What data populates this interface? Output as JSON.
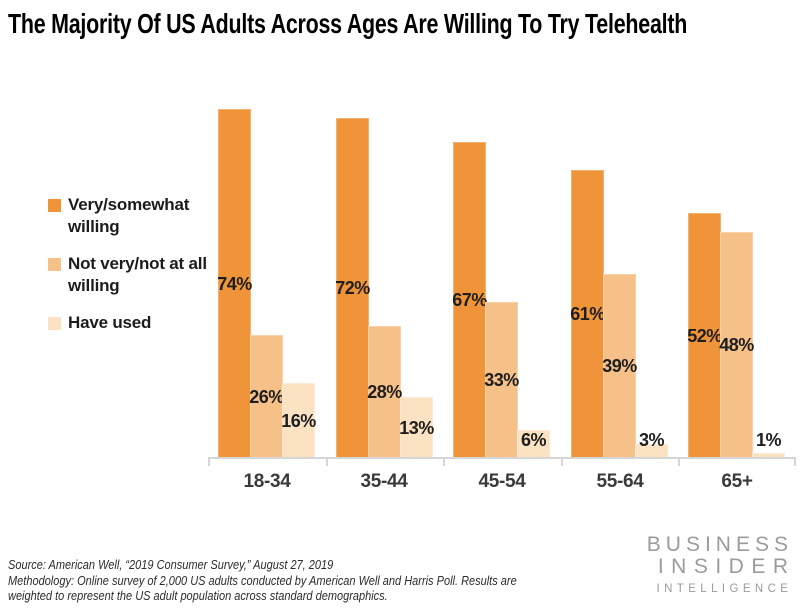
{
  "title": "The Majority Of US Adults Across Ages Are Willing To Try Telehealth",
  "chart_data": {
    "type": "bar",
    "title": "The Majority Of US Adults Across Ages Are Willing To Try Telehealth",
    "categories": [
      "18-34",
      "35-44",
      "45-54",
      "55-64",
      "65+"
    ],
    "series": [
      {
        "name": "Very/somewhat willing",
        "color": "#EF9438",
        "values": [
          74,
          72,
          67,
          61,
          52
        ]
      },
      {
        "name": "Not very/not at all willing",
        "color": "#F5C189",
        "values": [
          26,
          28,
          33,
          39,
          48
        ]
      },
      {
        "name": "Have used",
        "color": "#FAE2C3",
        "values": [
          16,
          13,
          6,
          3,
          1
        ]
      }
    ],
    "value_suffix": "%",
    "data_labels": true,
    "xlabel": "",
    "ylabel": "",
    "ylim": [
      0,
      78
    ],
    "grid": false,
    "y_axis_visible": false,
    "legend_position": "left",
    "axis_color": "#D6D6D6"
  },
  "footer": {
    "source": "Source: American Well, “2019 Consumer Survey,” August 27, 2019",
    "methodology": "Methodology: Online survey of 2,000 US adults conducted by American Well and Harris Poll. Results are weighted to represent the US adult population across standard demographics."
  },
  "logo": {
    "line1": "BUSINESS",
    "line2": "INSIDER",
    "line3": "INTELLIGENCE",
    "color": "#9B9B9B"
  }
}
